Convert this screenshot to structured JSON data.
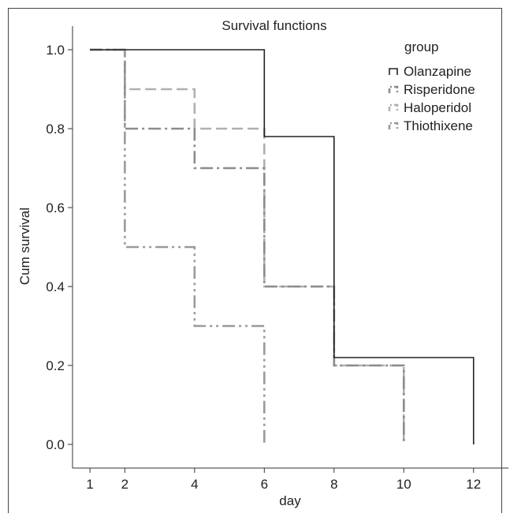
{
  "chart_data": {
    "type": "line",
    "step": true,
    "title": "Survival functions",
    "xlabel": "day",
    "ylabel": "Cum survival",
    "xlim": [
      0.5,
      13
    ],
    "ylim": [
      -0.06,
      1.06
    ],
    "x_ticks": [
      1,
      2,
      4,
      6,
      8,
      10,
      12
    ],
    "y_ticks": [
      0.0,
      0.2,
      0.4,
      0.6,
      0.8,
      1.0
    ],
    "y_tick_labels": [
      "0.0",
      "0.2",
      "0.4",
      "0.6",
      "0.8",
      "1.0"
    ],
    "grid": false,
    "legend": {
      "title": "group",
      "placement": "top-right"
    },
    "series": [
      {
        "name": "Olanzapine",
        "color": "#222222",
        "style": "solid",
        "x": [
          1,
          6,
          8,
          12
        ],
        "y": [
          1.0,
          0.78,
          0.22,
          0.0
        ]
      },
      {
        "name": "Risperidone",
        "color": "#8c8c8c",
        "style": "dash-dot",
        "x": [
          1,
          2,
          4,
          6,
          8,
          10
        ],
        "y": [
          1.0,
          0.8,
          0.7,
          0.4,
          0.2,
          0.0
        ]
      },
      {
        "name": "Haloperidol",
        "color": "#b0b0b0",
        "style": "dashed",
        "x": [
          1,
          2,
          4,
          6,
          8,
          10
        ],
        "y": [
          1.0,
          0.9,
          0.8,
          0.4,
          0.2,
          0.0
        ]
      },
      {
        "name": "Thiothixene",
        "color": "#9a9a9a",
        "style": "dash-dot-dot",
        "x": [
          1,
          2,
          4,
          6
        ],
        "y": [
          1.0,
          0.5,
          0.3,
          0.0
        ]
      }
    ]
  }
}
